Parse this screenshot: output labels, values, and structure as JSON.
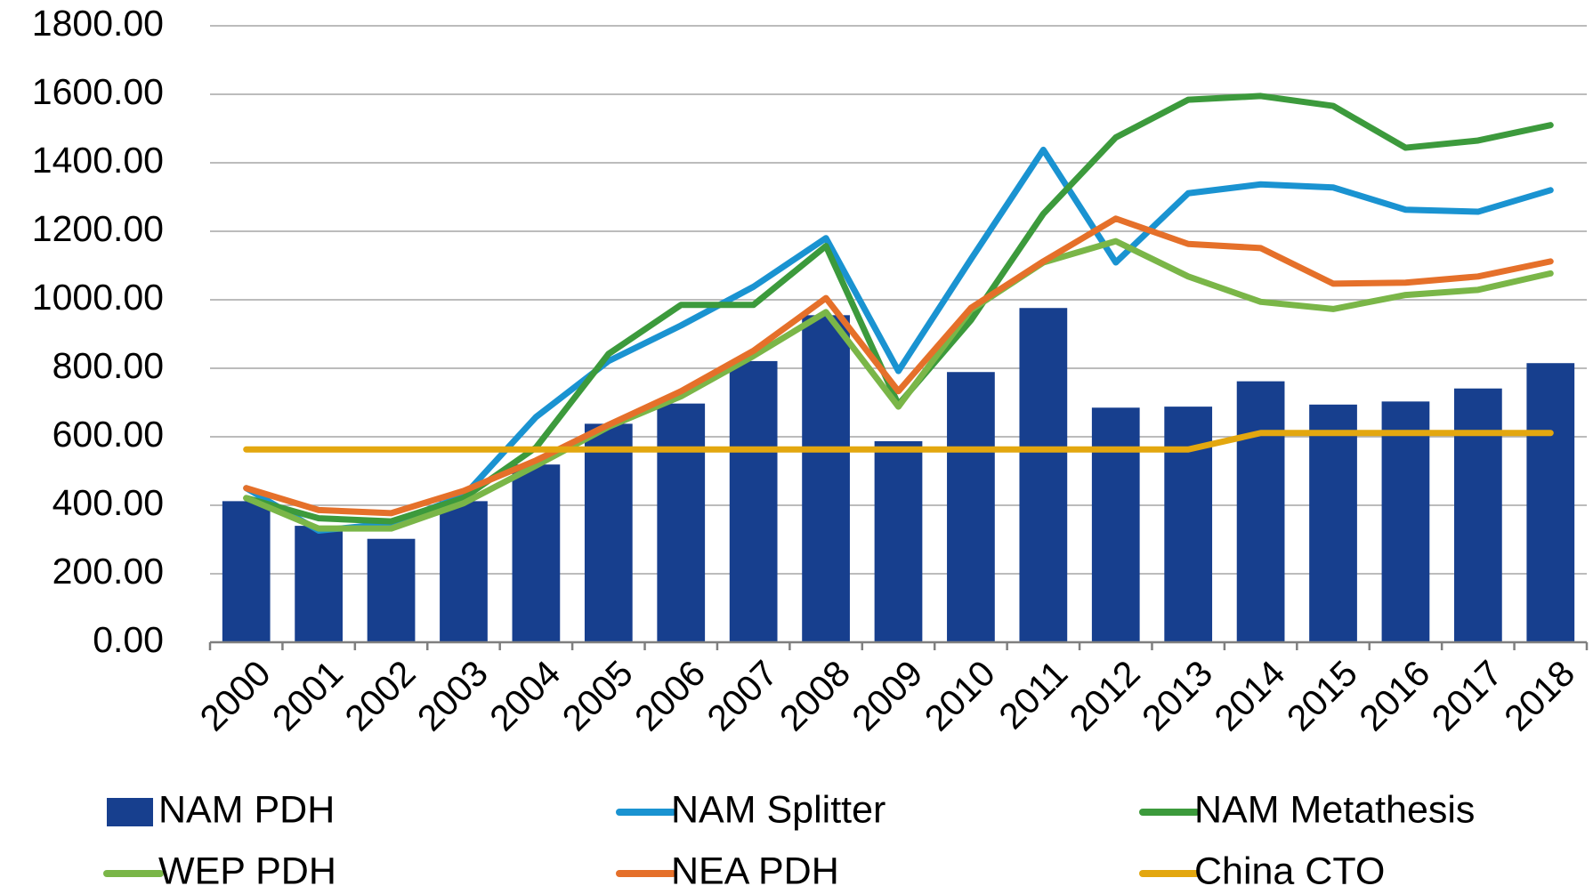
{
  "chart_data": {
    "type": "combo",
    "categories": [
      "2000",
      "2001",
      "2002",
      "2003",
      "2004",
      "2005",
      "2006",
      "2007",
      "2008",
      "2009",
      "2010",
      "2011",
      "2012",
      "2013",
      "2014",
      "2015",
      "2016",
      "2017",
      "2018"
    ],
    "series": [
      {
        "name": "NAM PDH",
        "type": "bar",
        "color": "#173f8e",
        "values": [
          412,
          340,
          302,
          412,
          519,
          638,
          697,
          821,
          955,
          587,
          789,
          976,
          685,
          688,
          762,
          694,
          703,
          741,
          815
        ]
      },
      {
        "name": "NAM Splitter",
        "type": "line",
        "color": "#1a93d1",
        "values": [
          450,
          326,
          347,
          427,
          658,
          821,
          925,
          1038,
          1180,
          792,
          1118,
          1438,
          1109,
          1311,
          1337,
          1328,
          1263,
          1257,
          1320
        ]
      },
      {
        "name": "NAM Metathesis",
        "type": "line",
        "color": "#3c9a3c",
        "values": [
          421,
          362,
          353,
          421,
          569,
          842,
          985,
          985,
          1157,
          694,
          940,
          1251,
          1474,
          1584,
          1595,
          1566,
          1444,
          1465,
          1510
        ]
      },
      {
        "name": "WEP PDH",
        "type": "line",
        "color": "#7ab648",
        "values": [
          421,
          332,
          332,
          406,
          516,
          629,
          718,
          836,
          964,
          688,
          970,
          1109,
          1171,
          1068,
          994,
          973,
          1014,
          1029,
          1077
        ]
      },
      {
        "name": "NEA PDH",
        "type": "line",
        "color": "#e5702a",
        "values": [
          450,
          386,
          377,
          442,
          531,
          635,
          733,
          851,
          1005,
          733,
          976,
          1112,
          1237,
          1163,
          1151,
          1047,
          1050,
          1068,
          1112
        ]
      },
      {
        "name": "China CTO",
        "type": "line",
        "color": "#e3a70f",
        "values": [
          563,
          563,
          563,
          563,
          563,
          563,
          563,
          563,
          563,
          563,
          563,
          563,
          563,
          563,
          611,
          611,
          611,
          611,
          611
        ]
      }
    ],
    "ylim": [
      0,
      1800
    ],
    "yticks": [
      {
        "value": 0,
        "label": "0.00"
      },
      {
        "value": 200,
        "label": "200.00"
      },
      {
        "value": 400,
        "label": "400.00"
      },
      {
        "value": 600,
        "label": "600.00"
      },
      {
        "value": 800,
        "label": "800.00"
      },
      {
        "value": 1000,
        "label": "1000.00"
      },
      {
        "value": 1200,
        "label": "1200.00"
      },
      {
        "value": 1400,
        "label": "1400.00"
      },
      {
        "value": 1600,
        "label": "1600.00"
      },
      {
        "value": 1800,
        "label": "1800.00"
      }
    ],
    "grid": true,
    "legend": "bottom"
  }
}
